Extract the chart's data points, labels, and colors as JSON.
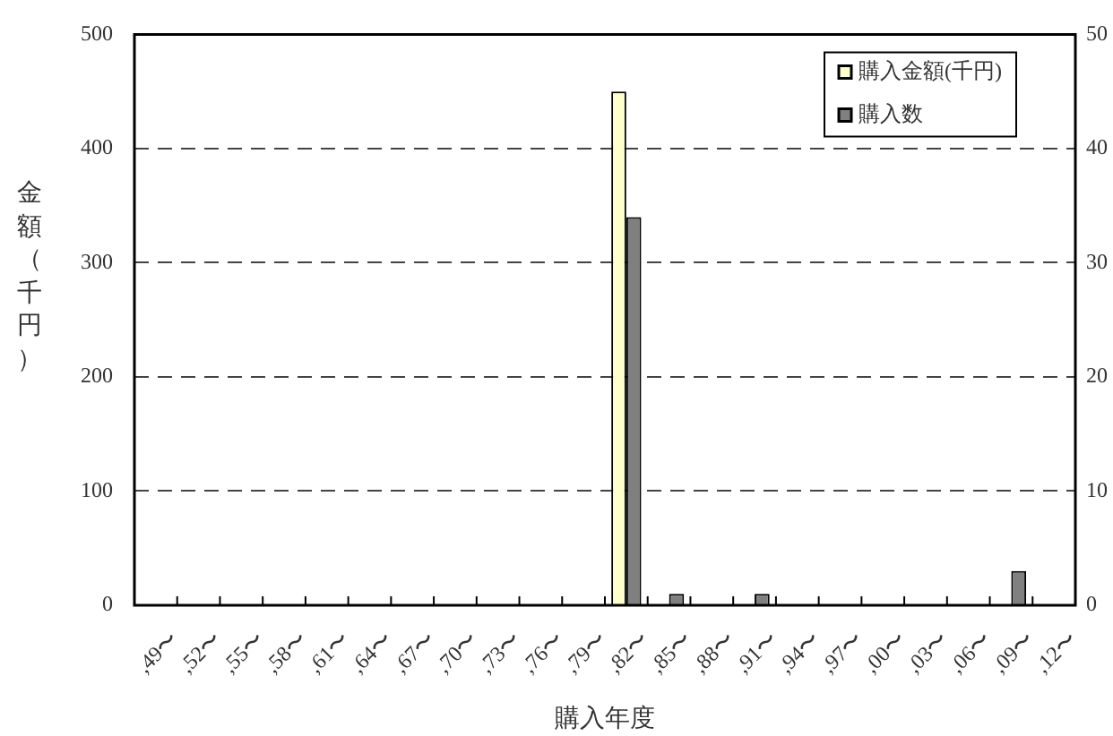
{
  "chart_data": {
    "type": "bar",
    "xlabel": "購入年度",
    "ylabel": "金額（千円）",
    "categories": [
      ",49〜",
      ",52〜",
      ",55〜",
      ",58〜",
      ",61〜",
      ",64〜",
      ",67〜",
      ",70〜",
      ",73〜",
      ",76〜",
      ",79〜",
      ",82〜",
      ",85〜",
      ",88〜",
      ",91〜",
      ",94〜",
      ",97〜",
      ",00〜",
      ",03〜",
      ",06〜",
      ",09〜",
      ",12〜"
    ],
    "series": [
      {
        "name": "購入金額(千円)",
        "color": "#ffffcc",
        "values": [
          null,
          null,
          null,
          null,
          null,
          null,
          null,
          null,
          null,
          null,
          null,
          450,
          null,
          null,
          null,
          null,
          null,
          null,
          null,
          null,
          null,
          null
        ]
      },
      {
        "name": "購入数",
        "color": "#808080",
        "axis": "y2",
        "values": [
          null,
          null,
          null,
          null,
          null,
          null,
          null,
          null,
          null,
          null,
          null,
          34,
          1,
          null,
          1,
          null,
          null,
          null,
          null,
          null,
          3,
          null
        ]
      }
    ],
    "ylim": [
      0,
      500
    ],
    "yticks": [
      0,
      100,
      200,
      300,
      400,
      500
    ],
    "y2lim": [
      0,
      50
    ],
    "y2ticks": [
      0,
      10,
      20,
      30,
      40,
      50
    ],
    "grid": "y",
    "legend": "top right"
  }
}
